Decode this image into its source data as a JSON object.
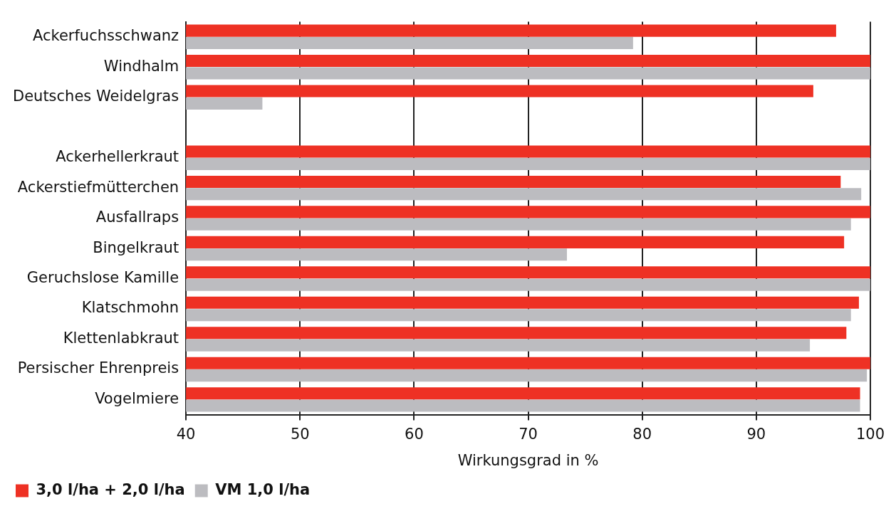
{
  "chart_data": {
    "type": "bar",
    "orientation": "horizontal",
    "xlabel": "Wirkungsgrad in %",
    "categories": [
      "Ackerfuchsschwanz",
      "Windhalm",
      "Deutsches Weidelgras",
      null,
      "Ackerhellerkraut",
      "Ackerstiefmütterchen",
      "Ausfallraps",
      "Bingelkraut",
      "Geruchslose Kamille",
      "Klatschmohn",
      "Klettenlabkraut",
      "Persischer Ehrenpreis",
      "Vogelmiere"
    ],
    "series": [
      {
        "name": "3,0 l/ha + 2,0 l/ha",
        "color": "#ee3124",
        "values": [
          97.0,
          100,
          95.0,
          null,
          100,
          97.4,
          100,
          97.7,
          100,
          99.0,
          97.9,
          100,
          99.1
        ]
      },
      {
        "name": "VM 1,0 l/ha",
        "color": "#bcbcc0",
        "values": [
          79.2,
          100,
          46.7,
          null,
          100,
          99.2,
          98.3,
          73.4,
          100,
          98.3,
          94.7,
          99.7,
          99.1
        ]
      }
    ],
    "xlim": [
      40,
      100
    ],
    "xticks": [
      40,
      50,
      60,
      70,
      80,
      90,
      100
    ],
    "grid": "x",
    "legend": "bottom left"
  }
}
